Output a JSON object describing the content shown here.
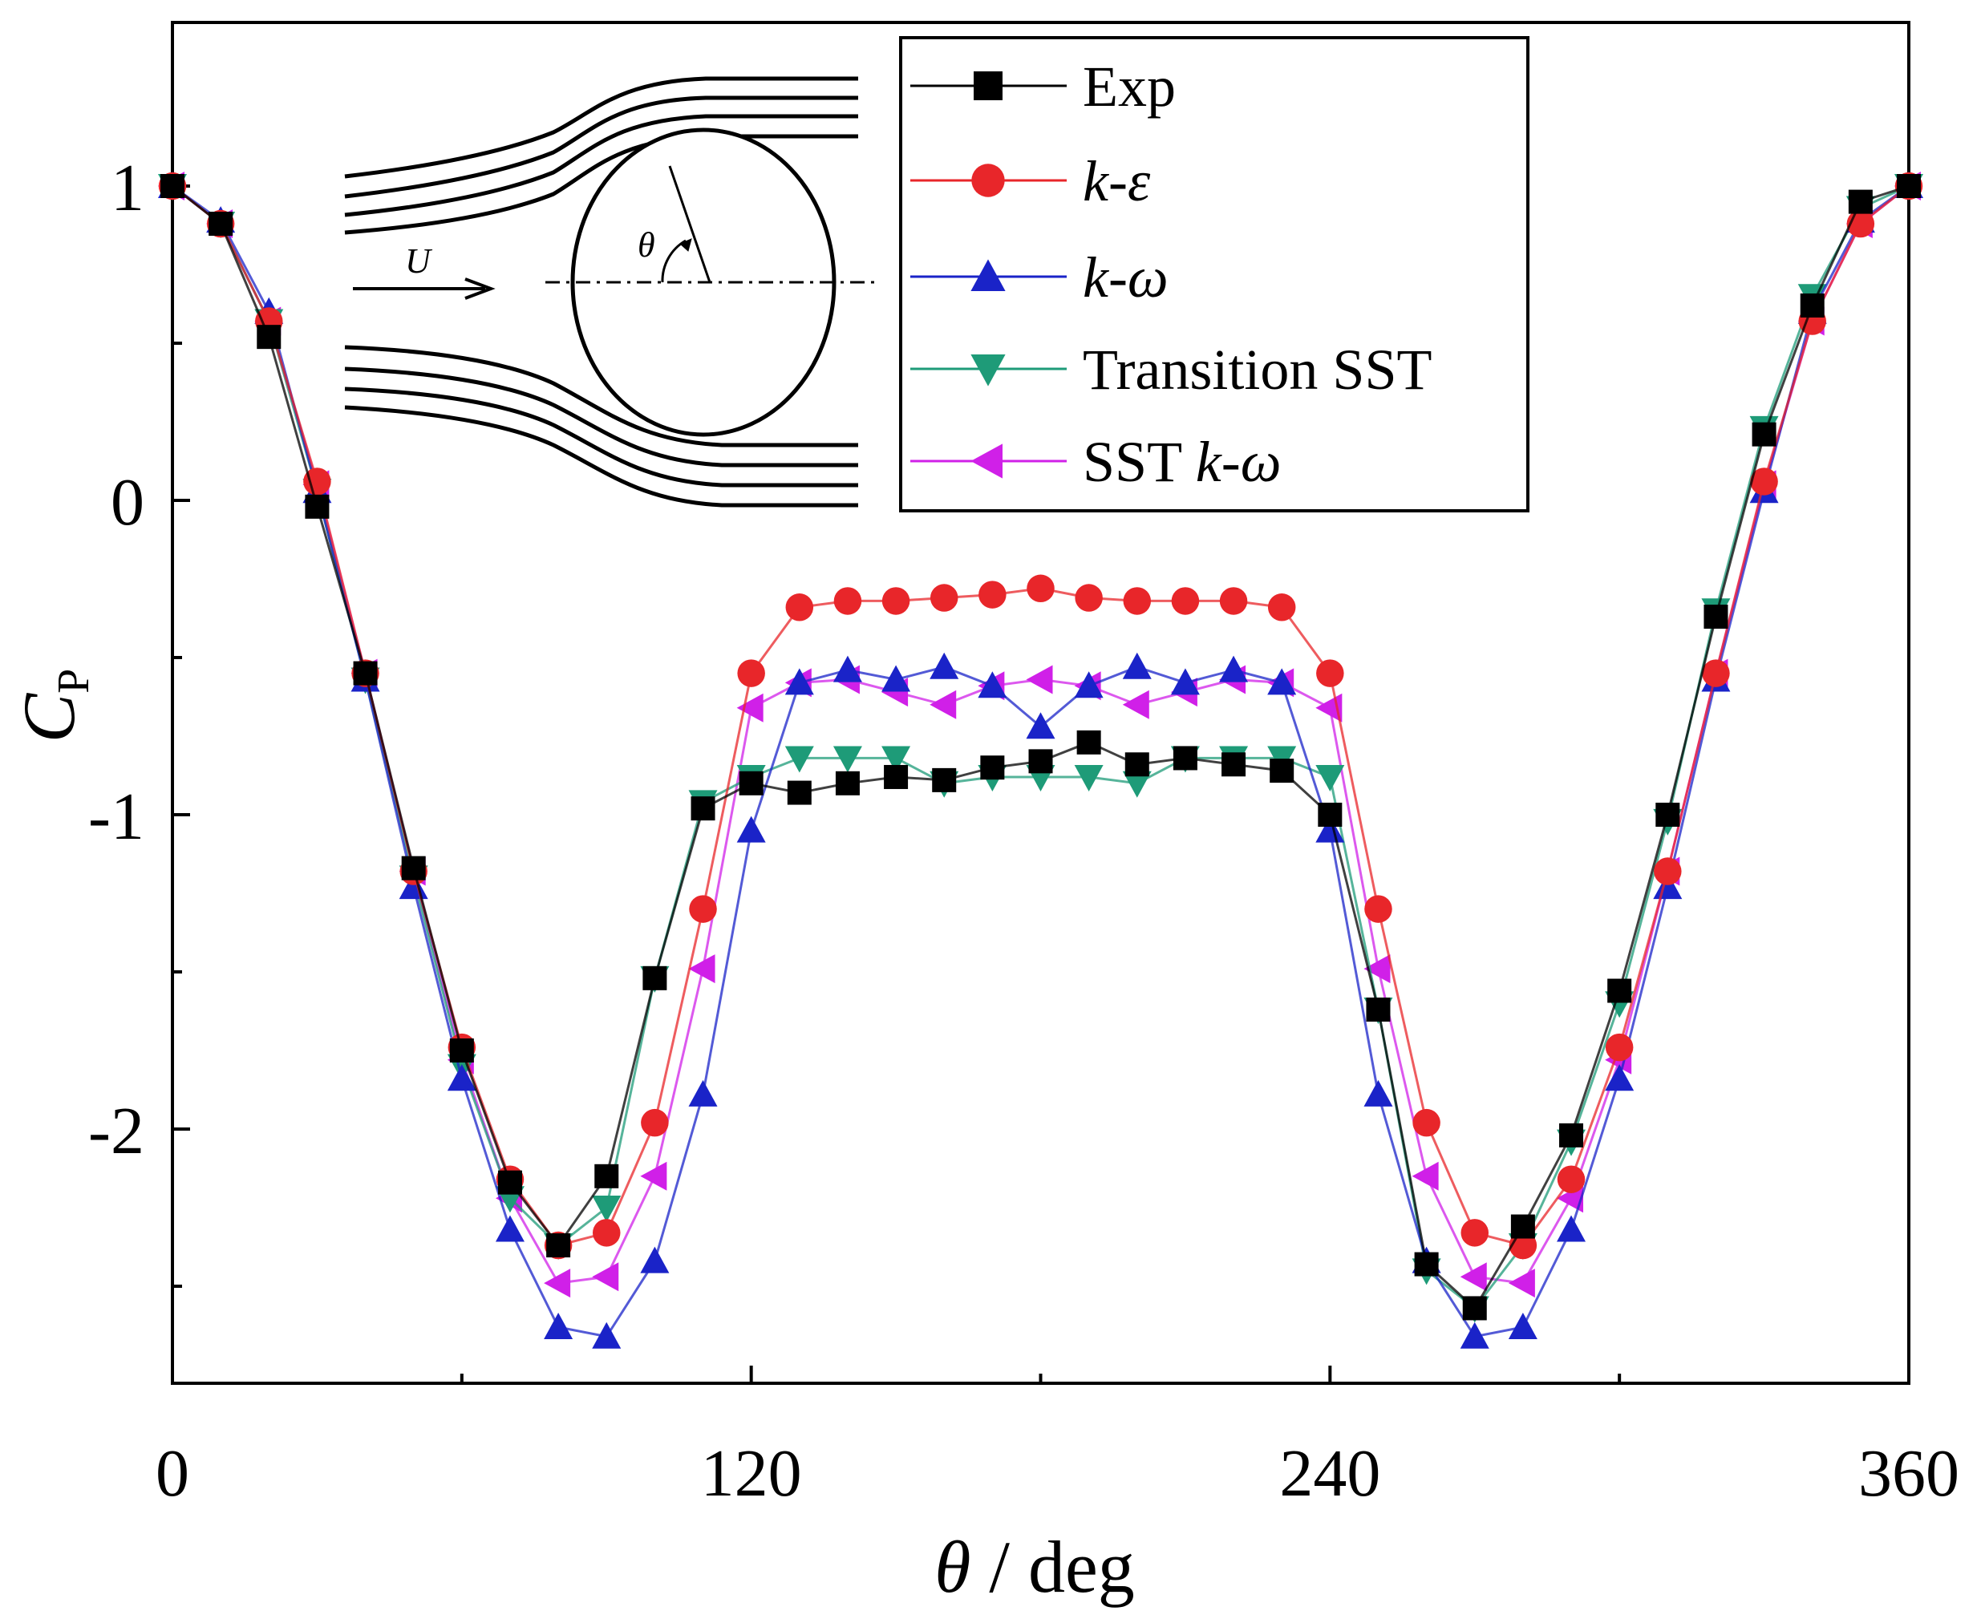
{
  "chart_data": {
    "type": "line",
    "xlabel": "θ / deg",
    "ylabel": "C_p",
    "xlim": [
      0,
      360
    ],
    "ylim": [
      -2.8,
      1.5
    ],
    "xticks": [
      "0",
      "120",
      "240",
      "360"
    ],
    "yticks": [
      "1",
      "0",
      "-1",
      "-2"
    ],
    "x": [
      0,
      10,
      20,
      30,
      40,
      50,
      60,
      70,
      80,
      90,
      100,
      110,
      120,
      130,
      140,
      150,
      160,
      170,
      180,
      190,
      200,
      210,
      220,
      230,
      240,
      250,
      260,
      270,
      280,
      290,
      300,
      310,
      320,
      330,
      340,
      350,
      360
    ],
    "series": [
      {
        "name": "Exp",
        "color": "#000000",
        "marker": "square",
        "values": [
          1.0,
          0.88,
          0.52,
          -0.02,
          -0.55,
          -1.17,
          -1.75,
          -2.17,
          -2.37,
          -2.15,
          -1.52,
          -0.98,
          -0.9,
          -0.93,
          -0.9,
          -0.88,
          -0.89,
          -0.85,
          -0.83,
          -0.77,
          -0.84,
          -0.82,
          -0.84,
          -0.86,
          -1.0,
          -1.62,
          -2.43,
          -2.57,
          -2.31,
          -2.02,
          -1.56,
          -1.0,
          -0.37,
          0.21,
          0.62,
          0.95,
          1.0
        ]
      },
      {
        "name": "k-ε",
        "color": "#e8262a",
        "marker": "circle",
        "values": [
          1.0,
          0.88,
          0.57,
          0.06,
          -0.55,
          -1.18,
          -1.74,
          -2.16,
          -2.37,
          -2.33,
          -1.98,
          -1.3,
          -0.55,
          -0.34,
          -0.32,
          -0.32,
          -0.31,
          -0.3,
          -0.28,
          -0.31,
          -0.32,
          -0.32,
          -0.32,
          -0.34,
          -0.55,
          -1.3,
          -1.98,
          -2.33,
          -2.37,
          -2.16,
          -1.74,
          -1.18,
          -0.55,
          0.06,
          0.57,
          0.88,
          1.0
        ]
      },
      {
        "name": "k-ω",
        "color": "#1a23c8",
        "marker": "triangle-up",
        "values": [
          1.0,
          0.89,
          0.6,
          0.03,
          -0.57,
          -1.23,
          -1.84,
          -2.32,
          -2.63,
          -2.66,
          -2.42,
          -1.89,
          -1.05,
          -0.58,
          -0.54,
          -0.57,
          -0.53,
          -0.59,
          -0.72,
          -0.59,
          -0.53,
          -0.58,
          -0.54,
          -0.58,
          -1.05,
          -1.89,
          -2.42,
          -2.66,
          -2.63,
          -2.32,
          -1.84,
          -1.23,
          -0.57,
          0.03,
          0.6,
          0.89,
          1.0
        ]
      },
      {
        "name": "Transition SST",
        "color": "#1e9b78",
        "marker": "triangle-down",
        "values": [
          1.0,
          0.88,
          0.57,
          0.03,
          -0.57,
          -1.2,
          -1.8,
          -2.22,
          -2.37,
          -2.25,
          -1.52,
          -0.96,
          -0.88,
          -0.82,
          -0.82,
          -0.82,
          -0.9,
          -0.88,
          -0.88,
          -0.88,
          -0.9,
          -0.82,
          -0.82,
          -0.82,
          -0.88,
          -1.62,
          -2.45,
          -2.57,
          -2.37,
          -2.04,
          -1.6,
          -1.02,
          -0.35,
          0.23,
          0.65,
          0.93,
          1.0
        ]
      },
      {
        "name": "SST k-ω",
        "color": "#d020e8",
        "marker": "triangle-left",
        "values": [
          1.0,
          0.88,
          0.57,
          0.05,
          -0.55,
          -1.18,
          -1.78,
          -2.22,
          -2.49,
          -2.47,
          -2.15,
          -1.49,
          -0.66,
          -0.58,
          -0.57,
          -0.61,
          -0.65,
          -0.59,
          -0.57,
          -0.59,
          -0.65,
          -0.61,
          -0.57,
          -0.58,
          -0.66,
          -1.49,
          -2.15,
          -2.47,
          -2.49,
          -2.22,
          -1.78,
          -1.18,
          -0.55,
          0.05,
          0.57,
          0.88,
          1.0
        ]
      }
    ],
    "legend_position": "top-right",
    "inset": {
      "labels": [
        "U",
        "θ"
      ]
    }
  }
}
